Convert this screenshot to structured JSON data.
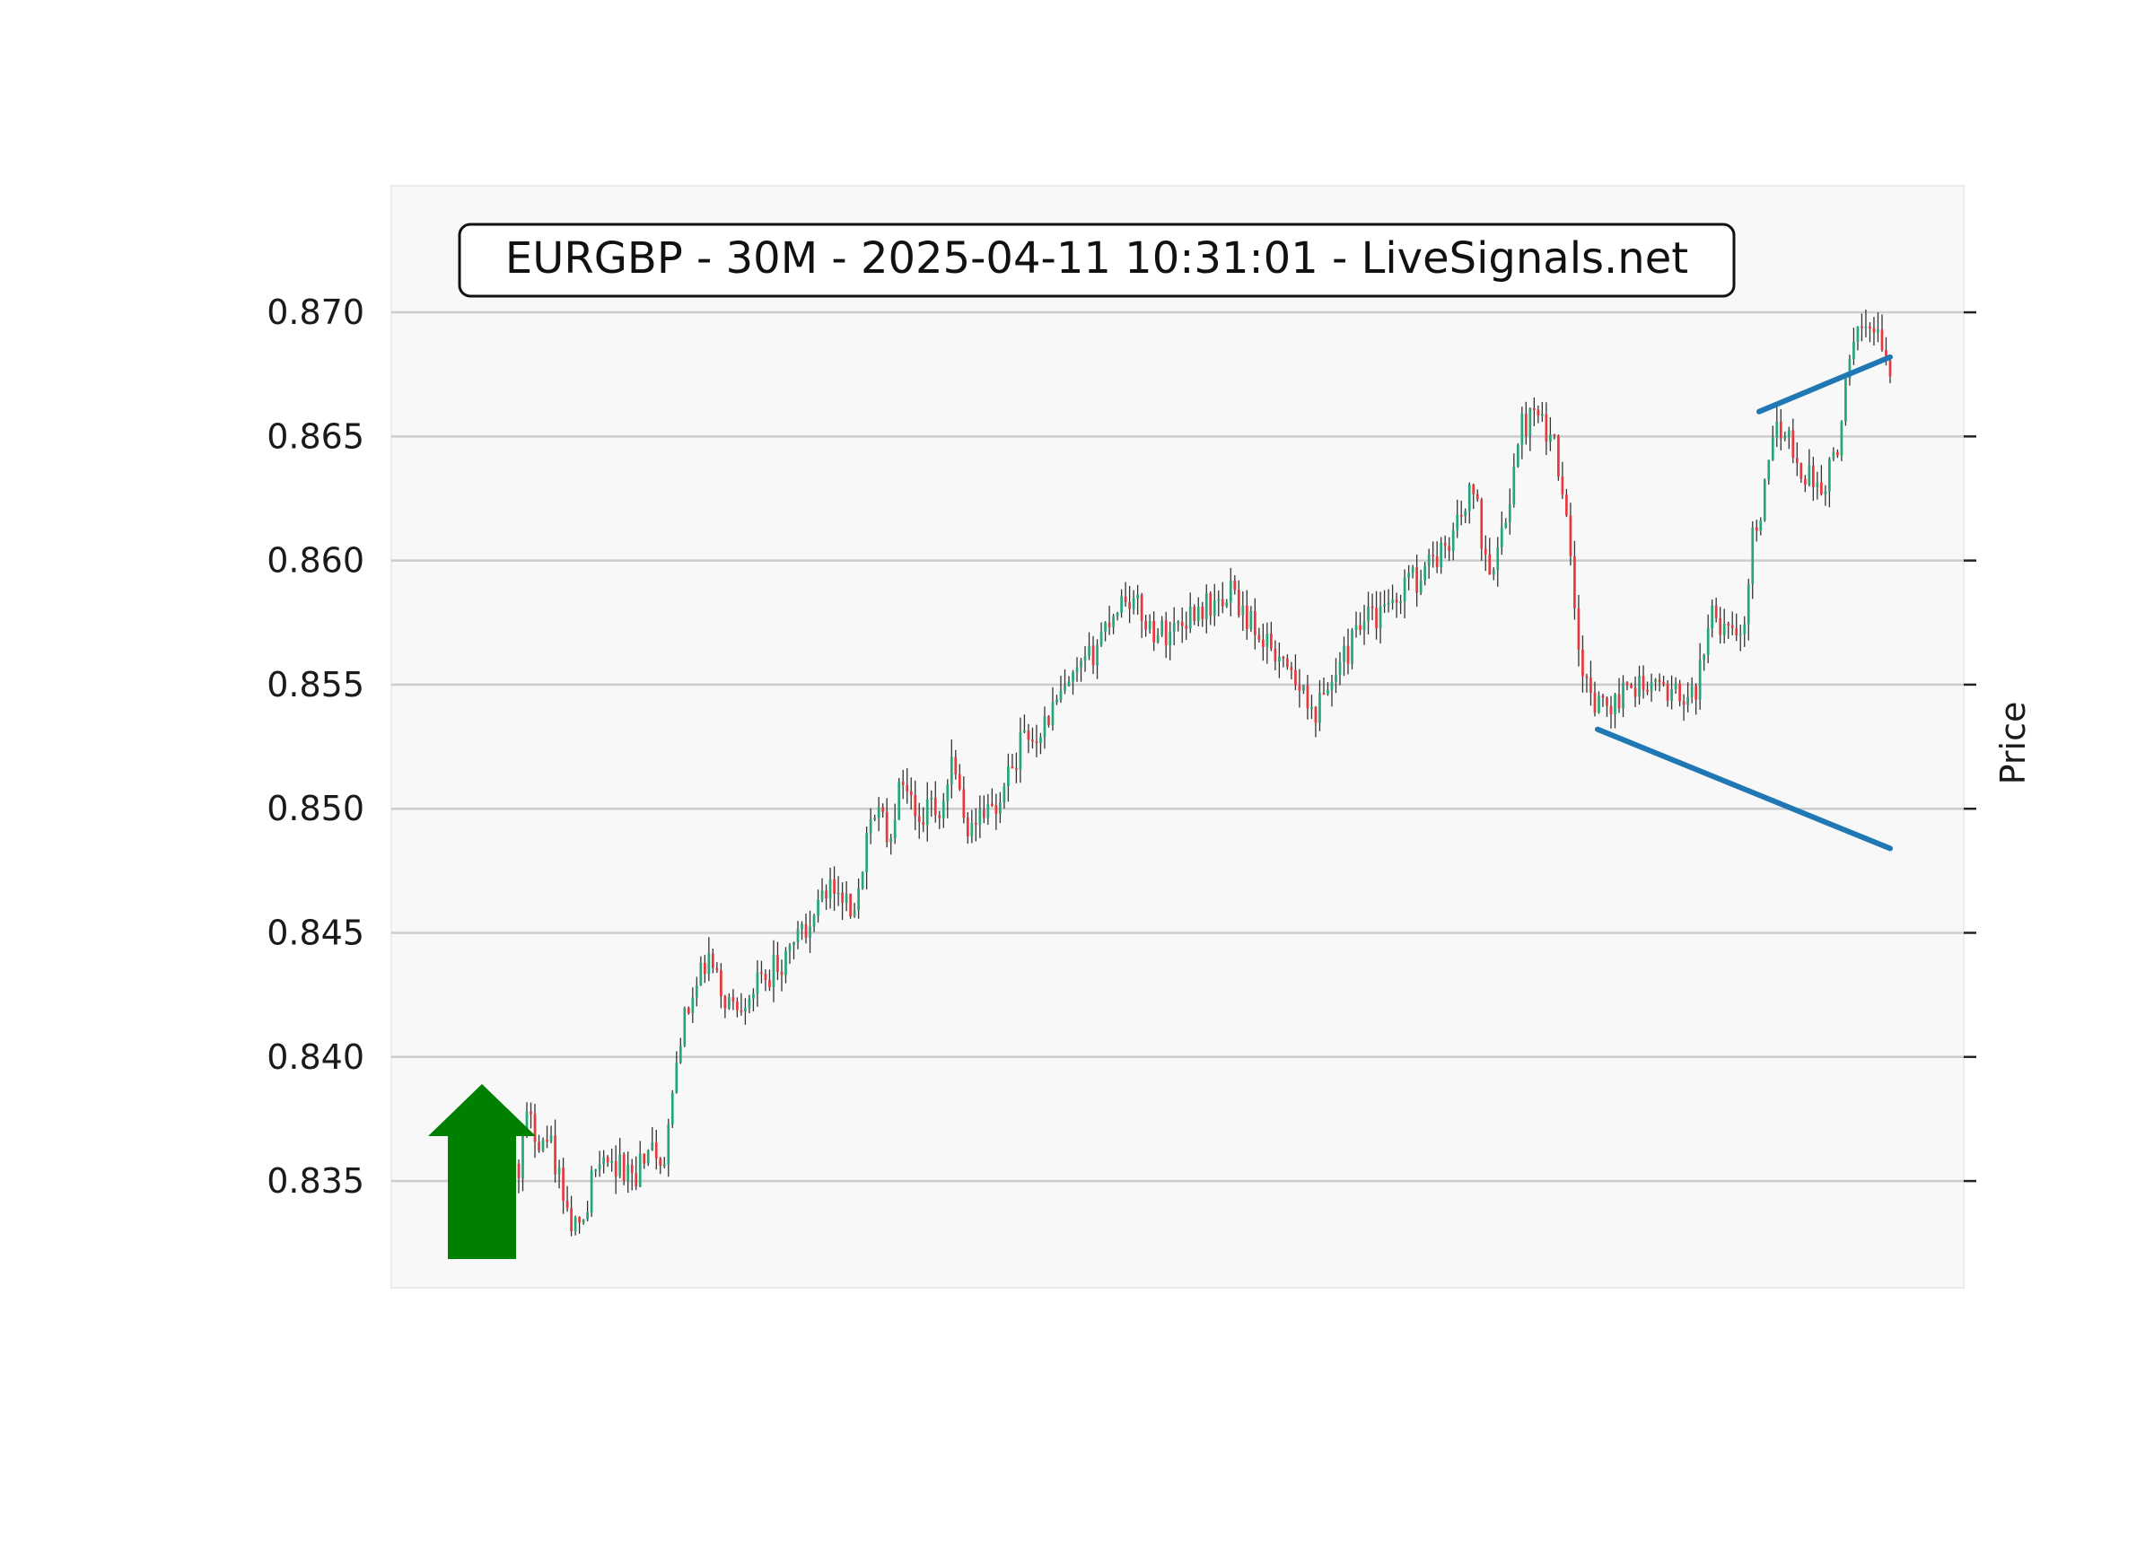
{
  "chart_data": {
    "type": "candlestick",
    "title": "EURGBP - 30M - 2025-04-11 10:31:01 - LiveSignals.net",
    "ylabel": "Price",
    "ylim": [
      0.8307,
      0.8751
    ],
    "y_ticks": [
      "0.835",
      "0.840",
      "0.845",
      "0.850",
      "0.855",
      "0.860",
      "0.865",
      "0.870"
    ],
    "grid": "horizontal",
    "signal": "up",
    "colors": {
      "up_candle": "#26a67a",
      "down_candle": "#e8383d",
      "wick": "#333333",
      "trendline": "#1f77b4",
      "signal_arrow": "#008000",
      "plot_background": "#f8f8f8",
      "grid": "#cccccc"
    },
    "trendlines": [
      {
        "name": "support",
        "x": [
          0,
          1
        ],
        "y": [
          0.8532,
          0.8484
        ]
      },
      {
        "name": "resistance",
        "x": [
          0,
          1
        ],
        "y": [
          0.866,
          0.8682
        ]
      }
    ],
    "price_path": [
      [
        0.0,
        0.8357
      ],
      [
        0.005,
        0.8375
      ],
      [
        0.015,
        0.8368
      ],
      [
        0.025,
        0.8362
      ],
      [
        0.035,
        0.8335
      ],
      [
        0.045,
        0.833
      ],
      [
        0.055,
        0.8355
      ],
      [
        0.07,
        0.8358
      ],
      [
        0.085,
        0.8352
      ],
      [
        0.095,
        0.8362
      ],
      [
        0.105,
        0.8354
      ],
      [
        0.11,
        0.8375
      ],
      [
        0.118,
        0.841
      ],
      [
        0.128,
        0.8425
      ],
      [
        0.138,
        0.844
      ],
      [
        0.148,
        0.8425
      ],
      [
        0.158,
        0.842
      ],
      [
        0.168,
        0.8427
      ],
      [
        0.178,
        0.843
      ],
      [
        0.188,
        0.8438
      ],
      [
        0.198,
        0.844
      ],
      [
        0.208,
        0.8452
      ],
      [
        0.218,
        0.8465
      ],
      [
        0.228,
        0.8468
      ],
      [
        0.238,
        0.8465
      ],
      [
        0.246,
        0.846
      ],
      [
        0.254,
        0.849
      ],
      [
        0.262,
        0.85
      ],
      [
        0.27,
        0.8488
      ],
      [
        0.28,
        0.8515
      ],
      [
        0.29,
        0.8495
      ],
      [
        0.3,
        0.85
      ],
      [
        0.308,
        0.8492
      ],
      [
        0.316,
        0.8525
      ],
      [
        0.326,
        0.849
      ],
      [
        0.336,
        0.85
      ],
      [
        0.346,
        0.8498
      ],
      [
        0.356,
        0.8512
      ],
      [
        0.366,
        0.8527
      ],
      [
        0.376,
        0.853
      ],
      [
        0.386,
        0.8537
      ],
      [
        0.396,
        0.8545
      ],
      [
        0.406,
        0.8552
      ],
      [
        0.416,
        0.856
      ],
      [
        0.426,
        0.8572
      ],
      [
        0.434,
        0.858
      ],
      [
        0.442,
        0.8587
      ],
      [
        0.452,
        0.858
      ],
      [
        0.462,
        0.8572
      ],
      [
        0.472,
        0.8571
      ],
      [
        0.482,
        0.8575
      ],
      [
        0.492,
        0.858
      ],
      [
        0.502,
        0.8582
      ],
      [
        0.512,
        0.8583
      ],
      [
        0.52,
        0.8587
      ],
      [
        0.53,
        0.8576
      ],
      [
        0.54,
        0.8573
      ],
      [
        0.55,
        0.8565
      ],
      [
        0.56,
        0.856
      ],
      [
        0.57,
        0.8552
      ],
      [
        0.578,
        0.8537
      ],
      [
        0.586,
        0.8545
      ],
      [
        0.596,
        0.8555
      ],
      [
        0.606,
        0.8565
      ],
      [
        0.616,
        0.8575
      ],
      [
        0.626,
        0.8578
      ],
      [
        0.636,
        0.8583
      ],
      [
        0.646,
        0.859
      ],
      [
        0.656,
        0.8593
      ],
      [
        0.666,
        0.86
      ],
      [
        0.676,
        0.8608
      ],
      [
        0.686,
        0.8615
      ],
      [
        0.696,
        0.863
      ],
      [
        0.702,
        0.861
      ],
      [
        0.708,
        0.86
      ],
      [
        0.716,
        0.8605
      ],
      [
        0.724,
        0.8632
      ],
      [
        0.732,
        0.8655
      ],
      [
        0.74,
        0.8658
      ],
      [
        0.748,
        0.8652
      ],
      [
        0.756,
        0.8645
      ],
      [
        0.762,
        0.863
      ],
      [
        0.768,
        0.859
      ],
      [
        0.774,
        0.8555
      ],
      [
        0.78,
        0.8545
      ],
      [
        0.788,
        0.854
      ],
      [
        0.796,
        0.8538
      ],
      [
        0.804,
        0.8545
      ],
      [
        0.812,
        0.855
      ],
      [
        0.82,
        0.8552
      ],
      [
        0.828,
        0.8548
      ],
      [
        0.836,
        0.8545
      ],
      [
        0.844,
        0.8545
      ],
      [
        0.852,
        0.854
      ],
      [
        0.86,
        0.855
      ],
      [
        0.866,
        0.8568
      ],
      [
        0.872,
        0.858
      ],
      [
        0.88,
        0.857
      ],
      [
        0.888,
        0.8568
      ],
      [
        0.894,
        0.858
      ],
      [
        0.9,
        0.861
      ],
      [
        0.908,
        0.8625
      ],
      [
        0.916,
        0.865
      ],
      [
        0.922,
        0.8655
      ],
      [
        0.928,
        0.8645
      ],
      [
        0.936,
        0.8635
      ],
      [
        0.944,
        0.8632
      ],
      [
        0.952,
        0.863
      ],
      [
        0.96,
        0.8642
      ],
      [
        0.966,
        0.8665
      ],
      [
        0.972,
        0.8685
      ],
      [
        0.98,
        0.8692
      ],
      [
        0.988,
        0.8698
      ],
      [
        0.994,
        0.8688
      ],
      [
        1.0,
        0.8672
      ]
    ]
  }
}
